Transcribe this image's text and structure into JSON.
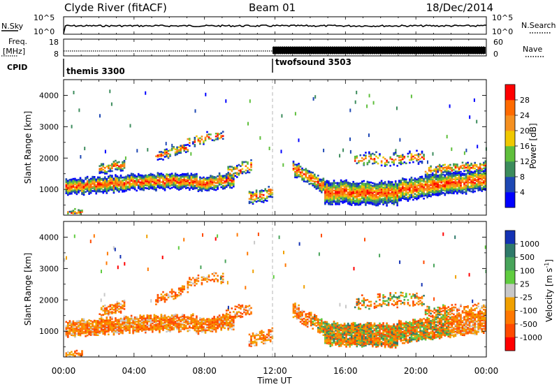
{
  "header": {
    "site": "Clyde River (fitACF)",
    "beam": "Beam 01",
    "date": "18/Dec/2014"
  },
  "chart_data": [
    {
      "panel": "summary-nsky",
      "type": "line",
      "ylabel": "N.Sky",
      "ylabel_right": "N.Search",
      "yscale": "log",
      "yticks_left": [
        "10^5",
        "10^0"
      ],
      "yticks_right": [
        "10^5",
        "10^0"
      ],
      "xlim_hours": [
        0,
        24
      ]
    },
    {
      "panel": "summary-freq",
      "type": "line",
      "ylabel": "Freq.",
      "yunit": "[MHz]",
      "ylabel_right": "Nave",
      "yticks_left": [
        18,
        8
      ],
      "yticks_right": [
        60,
        0
      ],
      "cpid_label": "CPID",
      "cpid_segments": [
        {
          "name": "themis 3300",
          "start_hour": 0,
          "end_hour": 12
        },
        {
          "name": "twofsound 3503",
          "start_hour": 12,
          "end_hour": 24
        }
      ]
    },
    {
      "panel": "power",
      "type": "heatmap",
      "ylabel": "Slant Range [km]",
      "ylim": [
        180,
        4500
      ],
      "yticks": [
        1000,
        2000,
        3000,
        4000
      ],
      "colorbar_label": "Power [dB]",
      "colorbar_ticks": [
        4,
        8,
        12,
        16,
        20,
        24,
        28
      ],
      "colorbar_colors": [
        "#0000ff",
        "#1e48b4",
        "#3c8c5c",
        "#5fbf3c",
        "#f0c800",
        "#f59020",
        "#ff6a00",
        "#ff0000"
      ]
    },
    {
      "panel": "velocity",
      "type": "heatmap",
      "ylabel": "Slant Range [km]",
      "xlabel": "Time UT",
      "ylim": [
        180,
        4500
      ],
      "yticks": [
        1000,
        2000,
        3000,
        4000
      ],
      "xticks": [
        "00:00",
        "04:00",
        "08:00",
        "12:00",
        "16:00",
        "20:00",
        "00:00"
      ],
      "colorbar_label": "Velocity [m s",
      "colorbar_label_sup": "-1",
      "colorbar_ticks": [
        "1000",
        "500",
        "100",
        "25",
        "-25",
        "-100",
        "-500",
        "-1000"
      ],
      "colorbar_colors": [
        "#1432b4",
        "#2f7a6a",
        "#48a45a",
        "#60cc40",
        "#c8c8c8",
        "#f0a000",
        "#ff7800",
        "#ff4a00",
        "#ff0000"
      ]
    }
  ]
}
